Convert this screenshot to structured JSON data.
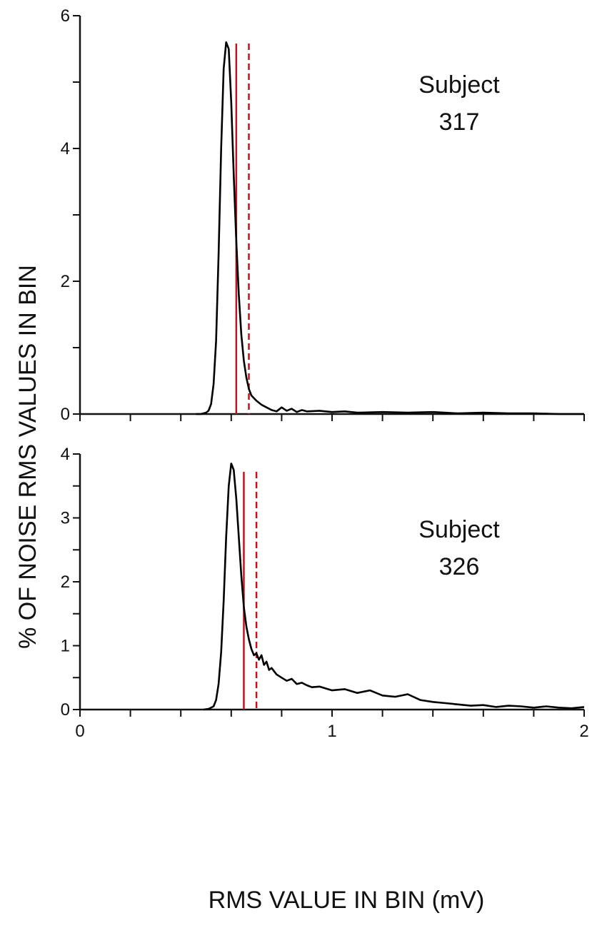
{
  "figure": {
    "ylabel": "% OF NOISE RMS VALUES IN BIN",
    "xlabel": "RMS VALUE IN BIN (mV)"
  },
  "chart_data": [
    {
      "type": "line",
      "xlabel": "",
      "ylabel": "",
      "xlim": [
        0,
        2
      ],
      "ylim": [
        0,
        6
      ],
      "yticks": [
        0,
        2,
        4,
        6
      ],
      "xticks": [],
      "annotation": [
        "Subject",
        "317"
      ],
      "colors": {
        "curve": "#000000",
        "threshold": "#c0141b"
      },
      "series": [
        {
          "x": [
            0.46,
            0.48,
            0.5,
            0.51,
            0.52,
            0.53,
            0.54,
            0.55,
            0.56,
            0.57,
            0.58,
            0.59,
            0.6,
            0.61,
            0.62,
            0.63,
            0.64,
            0.65,
            0.66,
            0.67,
            0.68,
            0.7,
            0.72,
            0.74,
            0.76,
            0.78,
            0.8,
            0.82,
            0.84,
            0.86,
            0.88,
            0.9,
            0.95,
            1.0,
            1.05,
            1.1,
            1.2,
            1.3,
            1.4,
            1.5,
            1.6,
            1.7,
            1.8,
            1.9,
            2.0
          ],
          "values": [
            0.0,
            0.0,
            0.02,
            0.05,
            0.15,
            0.45,
            1.1,
            2.4,
            4.0,
            5.2,
            5.6,
            5.5,
            4.7,
            3.6,
            2.6,
            1.8,
            1.2,
            0.8,
            0.55,
            0.38,
            0.28,
            0.2,
            0.14,
            0.1,
            0.06,
            0.04,
            0.1,
            0.05,
            0.08,
            0.03,
            0.06,
            0.04,
            0.05,
            0.03,
            0.04,
            0.02,
            0.03,
            0.02,
            0.03,
            0.01,
            0.02,
            0.01,
            0.01,
            0.0,
            0.0
          ]
        }
      ],
      "thresholds": [
        {
          "x": 0.62,
          "style": "solid"
        },
        {
          "x": 0.67,
          "style": "dashed"
        }
      ]
    },
    {
      "type": "line",
      "xlabel": "",
      "ylabel": "",
      "xlim": [
        0,
        2
      ],
      "ylim": [
        0,
        4
      ],
      "yticks": [
        0,
        1,
        2,
        3,
        4
      ],
      "xticks": [
        0,
        1,
        2
      ],
      "annotation": [
        "Subject",
        "326"
      ],
      "colors": {
        "curve": "#000000",
        "threshold": "#c0141b"
      },
      "series": [
        {
          "x": [
            0.49,
            0.51,
            0.53,
            0.54,
            0.55,
            0.56,
            0.57,
            0.58,
            0.59,
            0.6,
            0.61,
            0.62,
            0.63,
            0.64,
            0.65,
            0.66,
            0.67,
            0.68,
            0.69,
            0.7,
            0.71,
            0.72,
            0.73,
            0.74,
            0.75,
            0.76,
            0.78,
            0.8,
            0.82,
            0.84,
            0.86,
            0.88,
            0.9,
            0.92,
            0.95,
            1.0,
            1.05,
            1.1,
            1.15,
            1.2,
            1.25,
            1.3,
            1.35,
            1.4,
            1.45,
            1.5,
            1.55,
            1.6,
            1.65,
            1.7,
            1.75,
            1.8,
            1.85,
            1.9,
            1.95,
            2.0
          ],
          "values": [
            0.0,
            0.01,
            0.05,
            0.15,
            0.4,
            0.9,
            1.7,
            2.7,
            3.5,
            3.85,
            3.75,
            3.3,
            2.7,
            2.1,
            1.6,
            1.3,
            1.1,
            0.95,
            0.85,
            0.88,
            0.78,
            0.85,
            0.7,
            0.75,
            0.62,
            0.65,
            0.55,
            0.5,
            0.45,
            0.48,
            0.4,
            0.42,
            0.38,
            0.35,
            0.36,
            0.3,
            0.32,
            0.26,
            0.3,
            0.22,
            0.2,
            0.24,
            0.15,
            0.12,
            0.1,
            0.08,
            0.06,
            0.07,
            0.04,
            0.06,
            0.05,
            0.03,
            0.05,
            0.03,
            0.02,
            0.04
          ]
        }
      ],
      "thresholds": [
        {
          "x": 0.65,
          "style": "solid"
        },
        {
          "x": 0.7,
          "style": "dashed"
        }
      ]
    }
  ]
}
